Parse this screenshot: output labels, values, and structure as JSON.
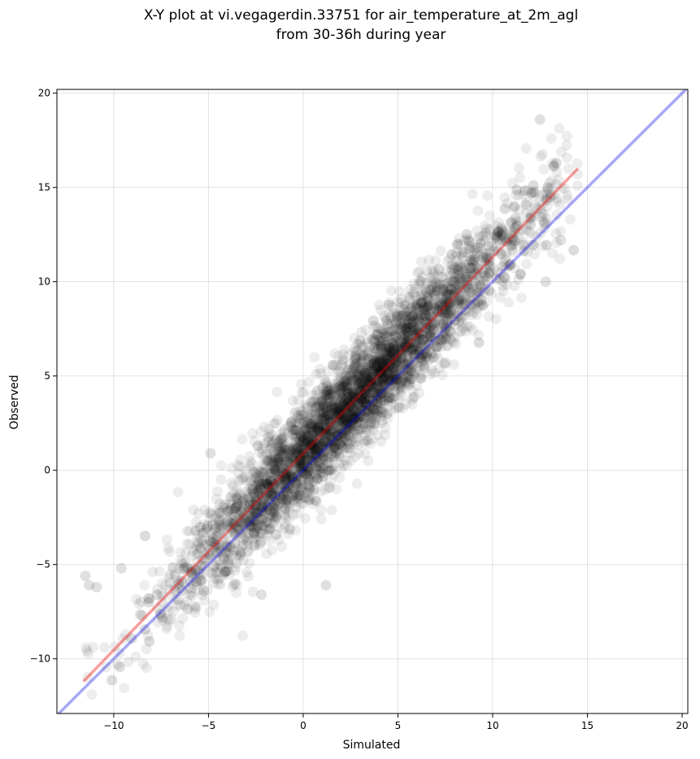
{
  "chart_data": {
    "type": "scatter",
    "title_line1": "X-Y plot at vi.vegagerdin.33751 for air_temperature_at_2m_agl",
    "title_line2": "from 30-36h during year",
    "xlabel": "Simulated",
    "ylabel": "Observed",
    "xlim": [
      -13,
      20.3
    ],
    "ylim": [
      -12.9,
      20.2
    ],
    "xticks": [
      -10,
      -5,
      0,
      5,
      10,
      15,
      20
    ],
    "yticks": [
      -10,
      -5,
      0,
      5,
      10,
      15,
      20
    ],
    "xtick_labels": [
      "−10",
      "−5",
      "0",
      "5",
      "10",
      "15",
      "20"
    ],
    "ytick_labels": [
      "−10",
      "−5",
      "0",
      "5",
      "10",
      "15",
      "20"
    ],
    "grid": true,
    "point_color": "#000000",
    "point_alpha": 0.07,
    "reference_line": {
      "color": "#0000ee",
      "x": [
        -13,
        20.3
      ],
      "y": [
        -13,
        20.3
      ]
    },
    "fit_line": {
      "color": "#ee0000",
      "x": [
        -11.6,
        14.5
      ],
      "y": [
        -11.2,
        16.0
      ]
    },
    "points_summary": {
      "count": 4000,
      "slope": 1.04,
      "intercept": 0.9,
      "x_range": [
        -11.6,
        14.5
      ],
      "residual_sd": 1.35,
      "outliers": [
        [
          -11.5,
          -5.6
        ],
        [
          -11.3,
          -6.1
        ],
        [
          -10.9,
          -6.2
        ],
        [
          -9.6,
          -5.2
        ],
        [
          -4.9,
          0.9
        ],
        [
          1.2,
          -6.1
        ],
        [
          -2.2,
          -6.6
        ],
        [
          12.8,
          10.0
        ],
        [
          13.6,
          12.2
        ],
        [
          12.5,
          18.6
        ]
      ]
    },
    "colors": {
      "reference": "#0000ee",
      "fit": "#ee0000",
      "grid": "#b0b0b0"
    }
  }
}
